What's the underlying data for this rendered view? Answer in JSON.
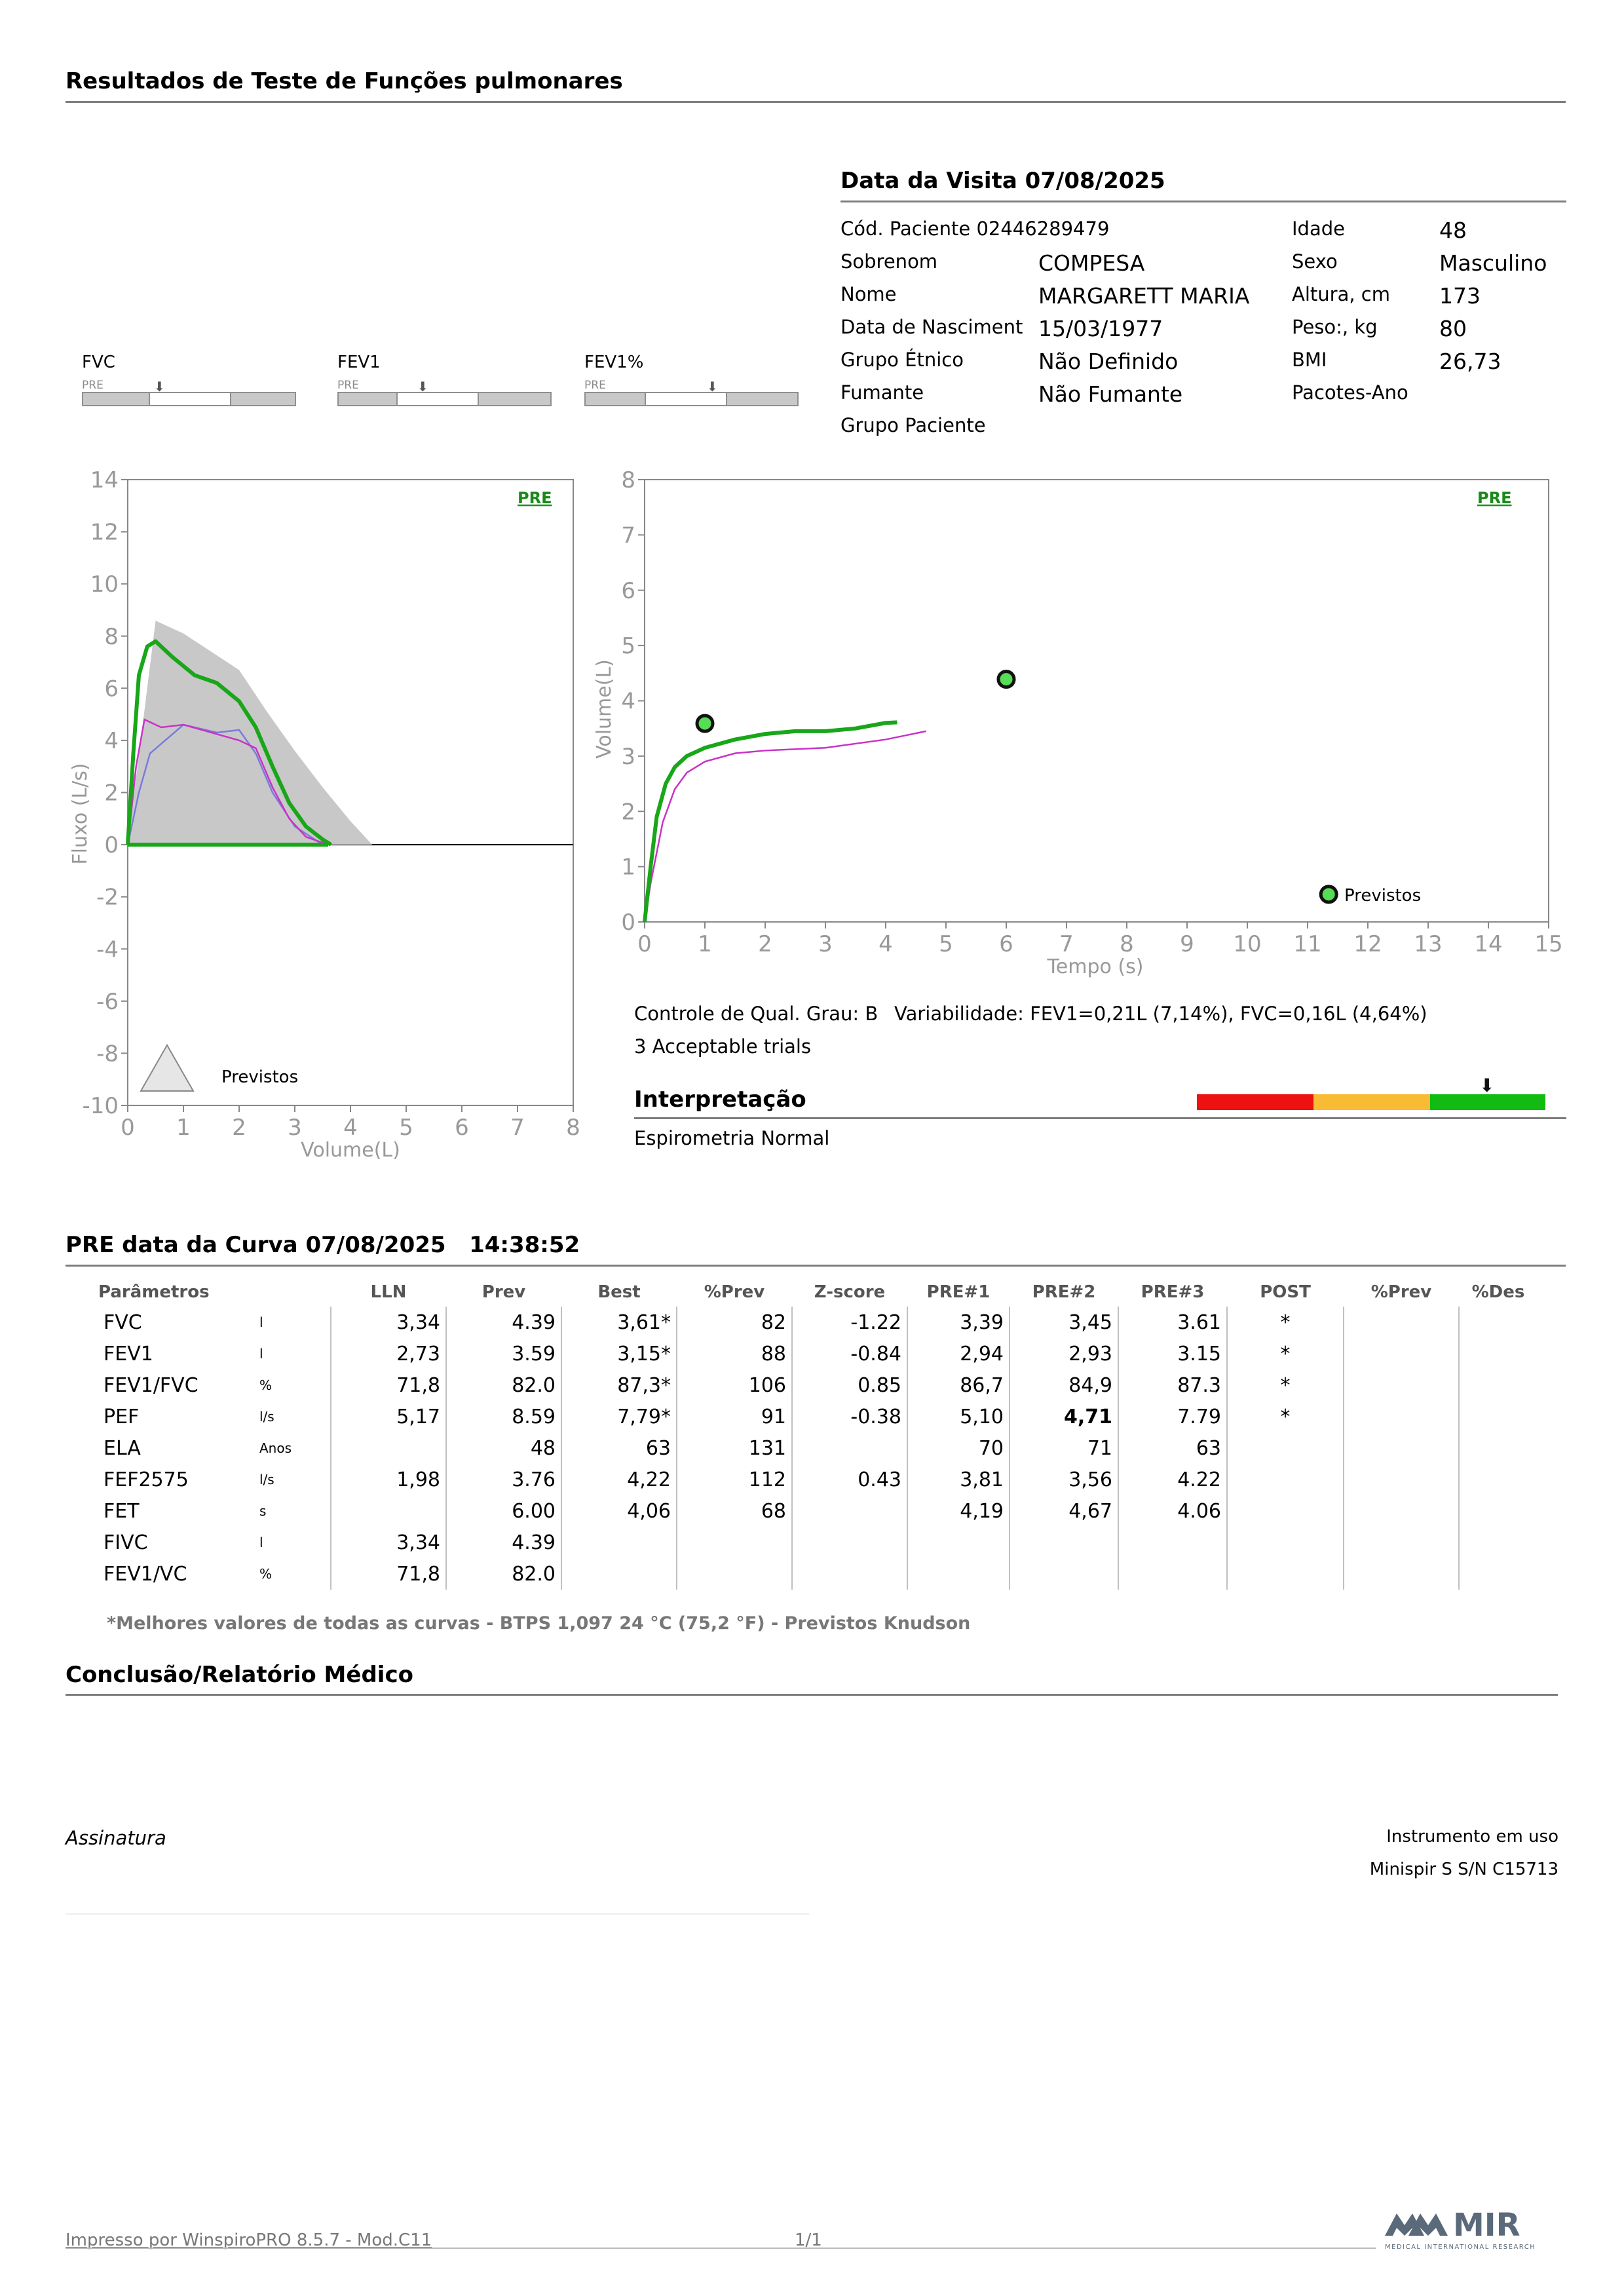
{
  "header": {
    "title": "Resultados de Teste de Funções pulmonares"
  },
  "visit": {
    "title": "Data da Visita 07/08/2025",
    "patient_code": "Cód. Paciente 02446289479",
    "fields_left": [
      {
        "label": "Sobrenom",
        "value": "COMPESA"
      },
      {
        "label": "Nome",
        "value": "MARGARETT MARIA"
      },
      {
        "label": "Data de Nasciment",
        "value": "15/03/1977"
      },
      {
        "label": "Grupo Étnico",
        "value": "Não Definido"
      },
      {
        "label": "Fumante",
        "value": "Não Fumante"
      },
      {
        "label": "Grupo Paciente",
        "value": ""
      }
    ],
    "fields_right": [
      {
        "label": "Idade",
        "value": "48"
      },
      {
        "label": "Sexo",
        "value": "Masculino"
      },
      {
        "label": "Altura, cm",
        "value": "173"
      },
      {
        "label": "Peso:, kg",
        "value": "80"
      },
      {
        "label": "BMI",
        "value": "26,73"
      },
      {
        "label": "Pacotes-Ano",
        "value": ""
      }
    ]
  },
  "mini_bars": [
    {
      "label": "FVC",
      "pre": "PRE"
    },
    {
      "label": "FEV1",
      "pre": "PRE"
    },
    {
      "label": "FEV1%",
      "pre": "PRE"
    }
  ],
  "flow_volume_chart": {
    "type": "line",
    "tag": "PRE",
    "xlabel": "Volume(L)",
    "ylabel": "Fluxo (L/s)",
    "xlim": [
      0,
      8
    ],
    "ylim": [
      -10,
      14
    ],
    "x_ticks": [
      "0",
      "1",
      "2",
      "3",
      "4",
      "5",
      "6",
      "7",
      "8"
    ],
    "y_ticks": [
      "14",
      "12",
      "10",
      "8",
      "6",
      "4",
      "2",
      "0",
      "-2",
      "-4",
      "-6",
      "-8",
      "-10"
    ],
    "legend_label": "Previstos",
    "colors": {
      "best": "#19a619",
      "trial": "#c832c8",
      "trial2": "#7a7adc",
      "predicted": "#c8c8c8"
    }
  },
  "volume_time_chart": {
    "type": "line",
    "tag": "PRE",
    "xlabel": "Tempo (s)",
    "ylabel": "Volume(L)",
    "xlim": [
      0,
      15
    ],
    "ylim": [
      0,
      8
    ],
    "x_ticks": [
      "0",
      "1",
      "2",
      "3",
      "4",
      "5",
      "6",
      "7",
      "8",
      "9",
      "10",
      "11",
      "12",
      "13",
      "14",
      "15"
    ],
    "y_ticks": [
      "0",
      "1",
      "2",
      "3",
      "4",
      "5",
      "6",
      "7",
      "8"
    ],
    "legend_label": "Previstos"
  },
  "chart_data": [
    {
      "type": "line",
      "xlabel": "Volume(L)",
      "ylabel": "Fluxo (L/s)",
      "xlim": [
        0,
        8
      ],
      "ylim": [
        -10,
        14
      ],
      "series": [
        {
          "x": [
            0,
            0.1,
            0.2,
            0.35,
            0.5,
            0.8,
            1.2,
            1.6,
            2.0,
            2.3,
            2.6,
            2.9,
            3.2,
            3.5,
            3.65
          ],
          "y": [
            0,
            3.5,
            6.5,
            7.6,
            7.8,
            7.2,
            6.5,
            6.2,
            5.5,
            4.5,
            3.0,
            1.6,
            0.7,
            0.2,
            0
          ]
        },
        {
          "x": [
            0,
            0.15,
            0.3,
            0.6,
            1.0,
            1.5,
            2.0,
            2.3,
            2.6,
            2.9,
            3.2,
            3.6
          ],
          "y": [
            0,
            3.0,
            4.8,
            4.5,
            4.6,
            4.3,
            4.0,
            3.7,
            2.2,
            1.0,
            0.3,
            0
          ]
        },
        {
          "x": [
            0,
            0.2,
            0.4,
            1.0,
            1.6,
            2.0,
            2.3,
            2.6,
            3.0,
            3.5
          ],
          "y": [
            0,
            2.0,
            3.5,
            4.6,
            4.3,
            4.4,
            3.5,
            2.0,
            0.7,
            0
          ]
        },
        {
          "x": [
            0,
            0.5,
            1.0,
            2.0,
            2.5,
            3.0,
            3.5,
            4.0,
            4.39
          ],
          "y": [
            0,
            8.59,
            8.1,
            6.7,
            5.1,
            3.6,
            2.2,
            0.9,
            0
          ]
        },
        {
          "x": [
            0,
            3.6
          ],
          "y": [
            0,
            0
          ]
        }
      ]
    },
    {
      "type": "line",
      "xlabel": "Tempo (s)",
      "ylabel": "Volume(L)",
      "xlim": [
        0,
        15
      ],
      "ylim": [
        0,
        8
      ],
      "series": [
        {
          "x": [
            0,
            0.1,
            0.2,
            0.35,
            0.5,
            0.7,
            1.0,
            1.5,
            2.0,
            2.5,
            3.0,
            3.5,
            4.0,
            4.19
          ],
          "y": [
            0,
            1.0,
            1.9,
            2.5,
            2.8,
            3.0,
            3.15,
            3.3,
            3.4,
            3.45,
            3.45,
            3.5,
            3.6,
            3.61
          ]
        },
        {
          "x": [
            0,
            0.1,
            0.3,
            0.5,
            0.7,
            1.0,
            1.5,
            2.0,
            3.0,
            4.0,
            4.67
          ],
          "y": [
            0,
            0.7,
            1.8,
            2.4,
            2.7,
            2.9,
            3.05,
            3.1,
            3.15,
            3.3,
            3.45
          ]
        },
        {
          "x": [
            1.0,
            6.0,
            11.35
          ],
          "y": [
            3.59,
            4.39,
            0.5
          ]
        }
      ]
    }
  ],
  "quality": {
    "grade": "Controle de Qual. Grau: B",
    "variability": "Variabilidade: FEV1=0,21L (7,14%), FVC=0,16L (4,64%)",
    "trials": "3 Acceptable trials"
  },
  "interpretation": {
    "title": "Interpretação",
    "text": "Espirometria Normal",
    "colors": [
      "#ee1111",
      "#f8bb33",
      "#11bb11"
    ]
  },
  "results": {
    "title": "PRE data da Curva 07/08/2025   14:38:52",
    "headers": [
      "Parâmetros",
      "",
      "LLN",
      "Prev",
      "Best",
      "%Prev",
      "Z-score",
      "PRE#1",
      "PRE#2",
      "PRE#3",
      "POST",
      "%Prev",
      "%Des"
    ],
    "rows": [
      [
        "FVC",
        "l",
        "3,34",
        "4.39",
        "3,61*",
        "82",
        "-1.22",
        "3,39",
        "3,45",
        "3.61",
        "*",
        "",
        ""
      ],
      [
        "FEV1",
        "l",
        "2,73",
        "3.59",
        "3,15*",
        "88",
        "-0.84",
        "2,94",
        "2,93",
        "3.15",
        "*",
        "",
        ""
      ],
      [
        "FEV1/FVC",
        "%",
        "71,8",
        "82.0",
        "87,3*",
        "106",
        "0.85",
        "86,7",
        "84,9",
        "87.3",
        "*",
        "",
        ""
      ],
      [
        "PEF",
        "l/s",
        "5,17",
        "8.59",
        "7,79*",
        "91",
        "-0.38",
        "5,10",
        "4,71",
        "7.79",
        "*",
        "",
        ""
      ],
      [
        "ELA",
        "Anos",
        "",
        "48",
        "63",
        "131",
        "",
        "70",
        "71",
        "63",
        "",
        "",
        ""
      ],
      [
        "FEF2575",
        "l/s",
        "1,98",
        "3.76",
        "4,22",
        "112",
        "0.43",
        "3,81",
        "3,56",
        "4.22",
        "",
        "",
        ""
      ],
      [
        "FET",
        "s",
        "",
        "6.00",
        "4,06",
        "68",
        "",
        "4,19",
        "4,67",
        "4.06",
        "",
        "",
        ""
      ],
      [
        "FIVC",
        "l",
        "3,34",
        "4.39",
        "",
        "",
        "",
        "",
        "",
        "",
        "",
        "",
        ""
      ],
      [
        "FEV1/VC",
        "%",
        "71,8",
        "82.0",
        "",
        "",
        "",
        "",
        "",
        "",
        "",
        "",
        ""
      ]
    ],
    "footnote": "*Melhores valores de todas as curvas - BTPS  1,097  24 °C  (75,2 °F) - Previstos Knudson"
  },
  "conclusion": {
    "title": "Conclusão/Relatório Médico"
  },
  "signature": {
    "label": "Assinatura"
  },
  "instrument": {
    "label": "Instrumento em uso",
    "value": "Minispir S S/N C15713"
  },
  "footer": {
    "printed_by": "Impresso por WinspiroPRO  8.5.7 - Mod.C11",
    "page": "1/1",
    "logo_text": "MIR",
    "logo_sub": "MEDICAL INTERNATIONAL RESEARCH"
  }
}
